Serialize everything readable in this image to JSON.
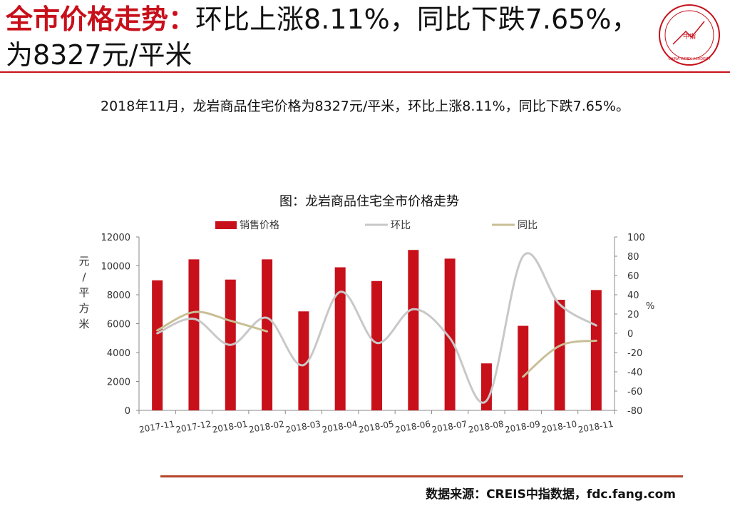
{
  "slide": {
    "title_highlight": "全市价格走势：",
    "title_rest": "环比上涨8.11%，同比下跌7.65%，为8327元/平米",
    "subtitle": "2018年11月，龙岩商品住宅价格为8327元/平米，环比上涨8.11%，同比下跌7.65%。",
    "source": "数据来源：CREIS中指数据，fdc.fang.com",
    "logo_center": "中指",
    "logo_ring": "CHINA INDEX ACADEMY",
    "colors": {
      "accent": "#c8101a",
      "mom": "#c8c8c8",
      "yoy": "#c9bf96",
      "rule": "#b5452a"
    }
  },
  "chart_data": {
    "type": "bar",
    "title": "图：龙岩商品住宅全市价格走势",
    "categories": [
      "2017-11",
      "2017-12",
      "2018-01",
      "2018-02",
      "2018-03",
      "2018-04",
      "2018-05",
      "2018-06",
      "2018-07",
      "2018-08",
      "2018-09",
      "2018-10",
      "2018-11"
    ],
    "ylabel": "元/平方米",
    "y2label": "%",
    "ylim": [
      0,
      12000
    ],
    "yticks": [
      0,
      2000,
      4000,
      6000,
      8000,
      10000,
      12000
    ],
    "y2lim": [
      -80,
      100
    ],
    "y2ticks": [
      -80,
      -60,
      -40,
      -20,
      0,
      20,
      40,
      60,
      80,
      100
    ],
    "legend_position": "top",
    "series": [
      {
        "name": "销售价格",
        "type": "bar",
        "axis": "left",
        "values": [
          9000,
          10450,
          9050,
          10450,
          6850,
          9900,
          8950,
          11100,
          10500,
          3250,
          5850,
          7650,
          8327
        ]
      },
      {
        "name": "环比",
        "type": "line",
        "axis": "right",
        "values": [
          0,
          15,
          -12,
          16,
          -33,
          43,
          -10,
          25,
          -5,
          -70,
          80,
          30,
          8.11
        ]
      },
      {
        "name": "同比",
        "type": "line",
        "axis": "right",
        "values": [
          3,
          22,
          13,
          2,
          null,
          null,
          null,
          null,
          null,
          null,
          -45,
          -13,
          -7.65
        ]
      }
    ]
  }
}
